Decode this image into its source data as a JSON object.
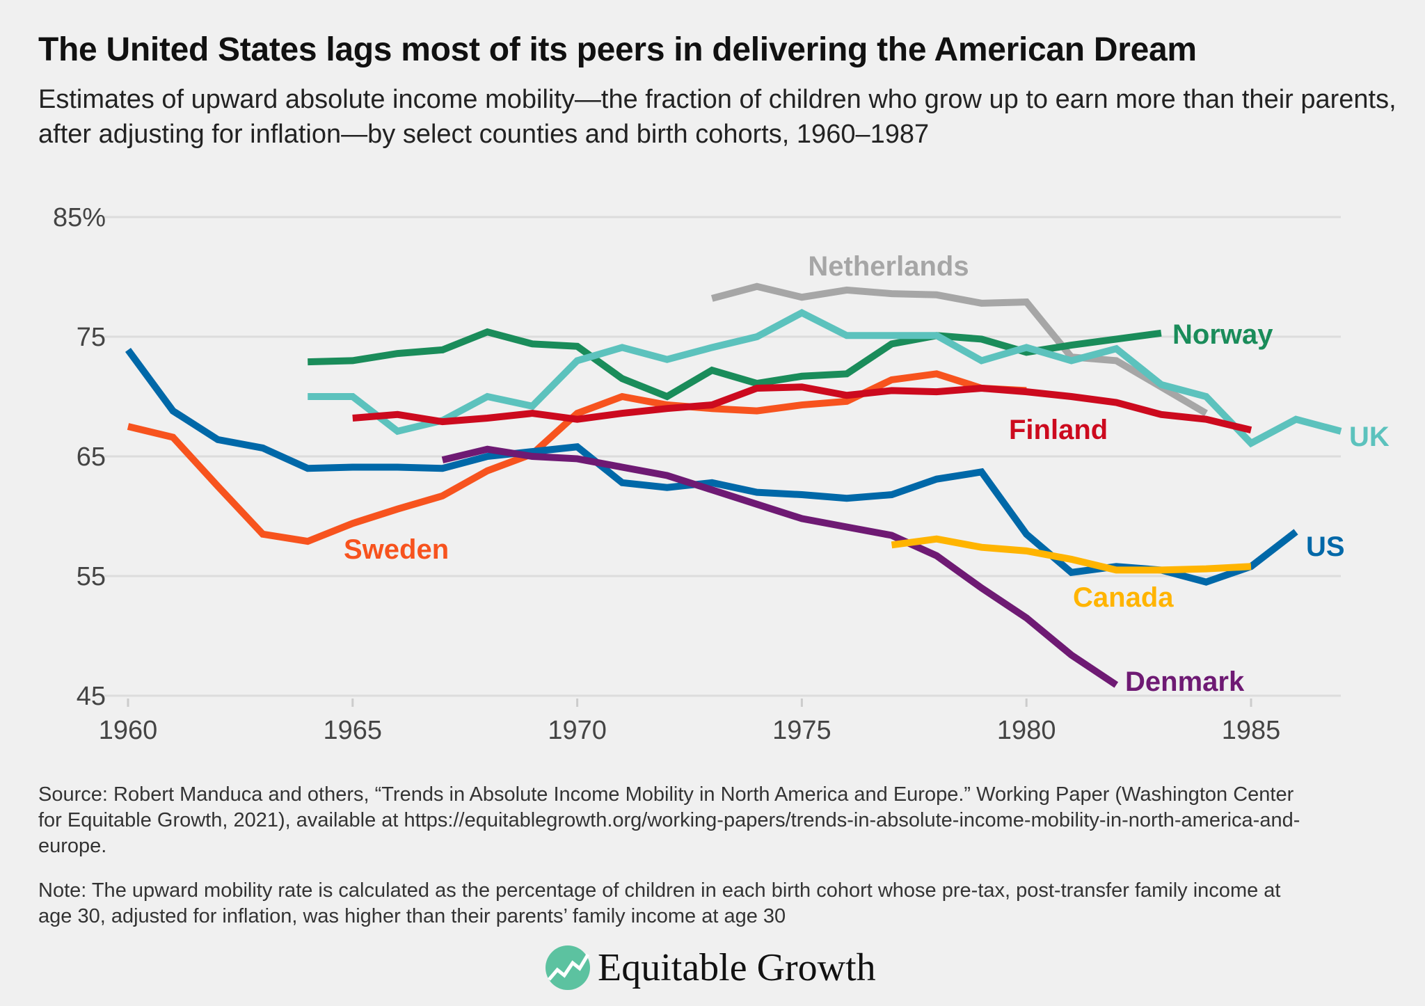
{
  "header": {
    "title": "The United States lags most of its peers in delivering the American Dream",
    "subtitle": "Estimates of upward absolute income mobility—the fraction of children who grow up to earn more than their parents, after adjusting for inflation—by select counties and birth cohorts, 1960–1987"
  },
  "chart_data": {
    "type": "line",
    "title": "",
    "xlabel": "",
    "ylabel": "",
    "xlim": [
      1960,
      1987
    ],
    "ylim": [
      45,
      85
    ],
    "x_ticks": [
      1960,
      1965,
      1970,
      1975,
      1980,
      1985
    ],
    "x_tick_labels": [
      "1960",
      "1965",
      "1970",
      "1975",
      "1980",
      "1985"
    ],
    "y_ticks": [
      45,
      55,
      65,
      75,
      85
    ],
    "y_tick_labels": [
      "45",
      "55",
      "65",
      "75",
      "85%"
    ],
    "grid": "horizontal",
    "legend": "direct labels",
    "series": [
      {
        "name": "Netherlands",
        "color": "#a6a6a6",
        "start": 1973,
        "values": [
          78.2,
          79.2,
          78.3,
          78.9,
          78.6,
          78.5,
          77.8,
          77.9,
          73.3,
          73.0,
          70.8,
          68.6
        ]
      },
      {
        "name": "Norway",
        "color": "#1a8c5a",
        "start": 1964,
        "values": [
          72.9,
          73.0,
          73.6,
          73.9,
          75.4,
          74.4,
          74.2,
          71.5,
          70.0,
          72.2,
          71.1,
          71.7,
          71.9,
          74.4,
          75.1,
          74.8,
          73.7,
          74.3,
          74.8,
          75.3
        ]
      },
      {
        "name": "UK",
        "color": "#5cc2bd",
        "start": 1964,
        "values": [
          70.0,
          70.0,
          67.1,
          68.0,
          70.0,
          69.2,
          73.0,
          74.1,
          73.1,
          74.1,
          75.0,
          77.0,
          75.1,
          75.1,
          75.1,
          73.0,
          74.1,
          73.0,
          74.0,
          71.0,
          70.0,
          66.1,
          68.1,
          67.1
        ]
      },
      {
        "name": "Sweden",
        "color": "#f7531e",
        "start": 1960,
        "values": [
          67.5,
          66.6,
          62.5,
          58.5,
          57.9,
          59.4,
          60.6,
          61.7,
          63.8,
          65.2,
          68.6,
          70.0,
          69.3,
          69.0,
          68.8,
          69.3,
          69.6,
          71.4,
          71.9,
          70.7,
          70.5
        ]
      },
      {
        "name": "Finland",
        "color": "#cc0a1e",
        "start": 1965,
        "values": [
          68.2,
          68.5,
          67.9,
          68.2,
          68.6,
          68.1,
          68.6,
          69.0,
          69.3,
          70.7,
          70.8,
          70.1,
          70.5,
          70.4,
          70.7,
          70.4,
          70.0,
          69.5,
          68.5,
          68.1,
          67.2
        ]
      },
      {
        "name": "US",
        "color": "#0068a8",
        "start": 1960,
        "values": [
          73.9,
          68.8,
          66.4,
          65.7,
          64.0,
          64.1,
          64.1,
          64.0,
          65.0,
          65.4,
          65.8,
          62.8,
          62.4,
          62.8,
          62.0,
          61.8,
          61.5,
          61.8,
          63.1,
          63.7,
          58.5,
          55.3,
          55.8,
          55.5,
          54.5,
          55.8,
          58.7
        ]
      },
      {
        "name": "Denmark",
        "color": "#6e1a73",
        "start": 1967,
        "values": [
          64.7,
          65.6,
          65.0,
          64.8,
          64.1,
          63.4,
          62.2,
          61.0,
          59.8,
          59.1,
          58.4,
          56.7,
          54.0,
          51.5,
          48.4,
          45.9
        ]
      },
      {
        "name": "Canada",
        "color": "#ffb400",
        "start": 1977,
        "values": [
          57.6,
          58.1,
          57.4,
          57.1,
          56.4,
          55.5,
          55.5,
          55.6,
          55.8
        ]
      }
    ]
  },
  "footer": {
    "source": "Source: Robert Manduca and others, “Trends in Absolute Income Mobility in North America and Europe.” Working Paper (Washington Center for Equitable Growth, 2021), available at https://equitablegrowth.org/working-papers/trends-in-absolute-income-mobility-in-north-america-and-europe.",
    "note": "Note: The upward mobility rate is calculated as the percentage of children in each birth cohort whose pre-tax, post-transfer family income at age 30, adjusted for inflation, was higher than their parents’ family income at age 30",
    "logo_text": "Equitable Growth",
    "logo_color": "#5cc2a0"
  }
}
